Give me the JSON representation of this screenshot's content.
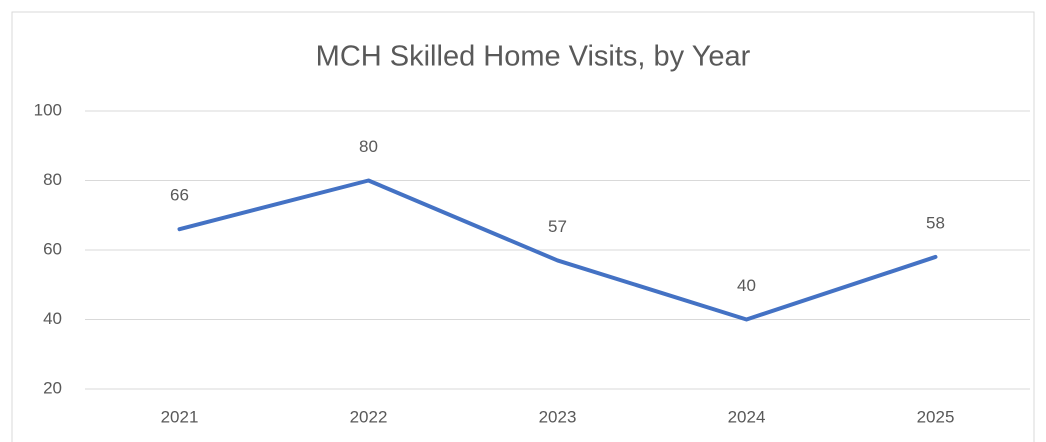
{
  "chart_data": {
    "type": "line",
    "title": "MCH Skilled Home Visits, by Year",
    "categories": [
      "2021",
      "2022",
      "2023",
      "2024",
      "2025"
    ],
    "series": [
      {
        "name": "MCH Skilled Home Visits",
        "color": "#4472c4",
        "values": [
          66,
          80,
          57,
          40,
          58
        ]
      }
    ],
    "ylim": [
      20,
      100
    ],
    "yticks": [
      20,
      40,
      60,
      80,
      100
    ],
    "grid": true,
    "data_labels": true
  }
}
